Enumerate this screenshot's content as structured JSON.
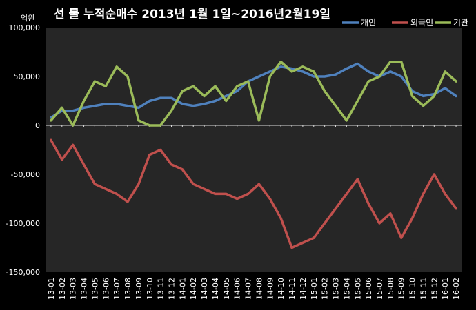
{
  "chart_data": {
    "type": "line",
    "title": "선 물 누적순매수 2013년 1월 1일~2016년2월19일",
    "unit": "억원",
    "xlabel": "",
    "ylabel": "",
    "ylim": [
      -150000,
      100000
    ],
    "yticks": [
      100000,
      50000,
      0,
      -50000,
      -100000,
      -150000
    ],
    "ytick_labels": [
      "100,000",
      "50,000",
      "0",
      "-50,000",
      "-100,000",
      "-150,000"
    ],
    "xtick_labels": [
      "13-01",
      "13-02",
      "13-03",
      "13-04",
      "13-05",
      "13-06",
      "13-07",
      "13-08",
      "13-09",
      "13-10",
      "13-11",
      "13-12",
      "14-01",
      "14-02",
      "14-03",
      "14-04",
      "14-05",
      "14-06",
      "14-07",
      "14-08",
      "14-09",
      "14-10",
      "14-11",
      "14-12",
      "15-01",
      "15-02",
      "15-03",
      "15-04",
      "15-05",
      "15-06",
      "15-07",
      "15-08",
      "15-09",
      "15-10",
      "15-11",
      "15-12",
      "16-01",
      "16-02"
    ],
    "legend_position": "top-right",
    "grid": false,
    "series": [
      {
        "name": "개인",
        "color": "#4f81bd",
        "values": [
          8000,
          15000,
          15000,
          18000,
          20000,
          22000,
          22000,
          20000,
          18000,
          25000,
          28000,
          28000,
          22000,
          20000,
          22000,
          25000,
          30000,
          35000,
          45000,
          50000,
          55000,
          60000,
          58000,
          55000,
          50000,
          50000,
          52000,
          58000,
          63000,
          55000,
          50000,
          55000,
          50000,
          35000,
          30000,
          32000,
          38000,
          30000
        ]
      },
      {
        "name": "외국인",
        "color": "#c0504d",
        "values": [
          -15000,
          -35000,
          -20000,
          -40000,
          -60000,
          -65000,
          -70000,
          -78000,
          -60000,
          -30000,
          -25000,
          -40000,
          -45000,
          -60000,
          -65000,
          -70000,
          -70000,
          -75000,
          -70000,
          -60000,
          -75000,
          -95000,
          -125000,
          -120000,
          -115000,
          -100000,
          -85000,
          -70000,
          -55000,
          -80000,
          -100000,
          -90000,
          -115000,
          -95000,
          -70000,
          -50000,
          -70000,
          -85000
        ]
      },
      {
        "name": "기관",
        "color": "#9bbb59",
        "values": [
          5000,
          18000,
          0,
          25000,
          45000,
          40000,
          60000,
          50000,
          5000,
          0,
          0,
          15000,
          35000,
          40000,
          30000,
          40000,
          25000,
          40000,
          45000,
          5000,
          50000,
          65000,
          55000,
          60000,
          55000,
          35000,
          20000,
          5000,
          25000,
          45000,
          50000,
          65000,
          65000,
          30000,
          20000,
          30000,
          55000,
          45000
        ]
      }
    ]
  }
}
